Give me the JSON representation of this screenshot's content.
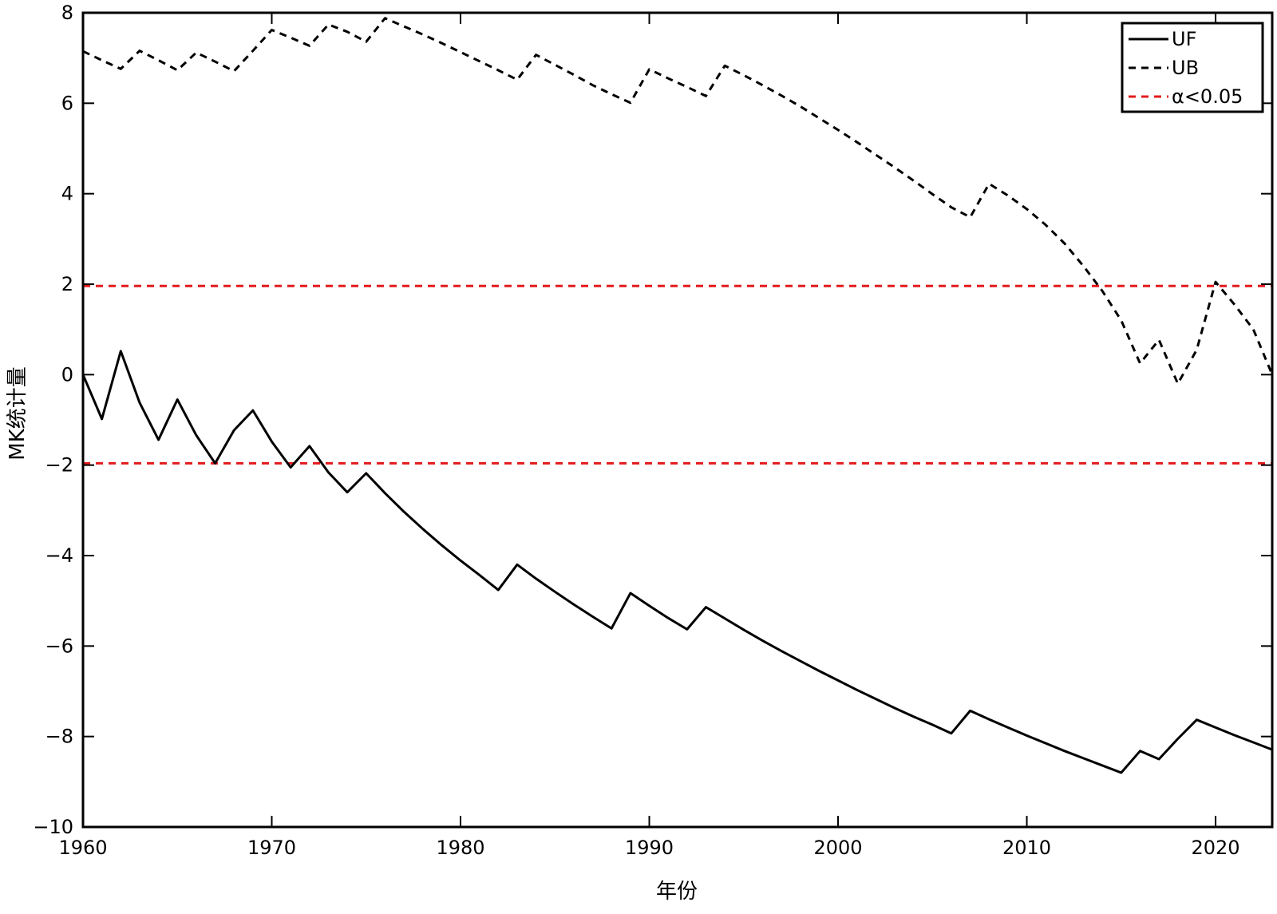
{
  "chart_data": {
    "type": "line",
    "title": "",
    "xlabel": "年份",
    "ylabel": "MK统计量",
    "xlim": [
      1960,
      2023
    ],
    "ylim": [
      -10,
      8
    ],
    "xticks": [
      1960,
      1970,
      1980,
      1990,
      2000,
      2010,
      2020
    ],
    "yticks": [
      -10,
      -8,
      -6,
      -4,
      -2,
      0,
      2,
      4,
      6,
      8
    ],
    "xtick_labels": [
      "1960",
      "1970",
      "1980",
      "1990",
      "2000",
      "2010",
      "2020"
    ],
    "ytick_labels": [
      "−10",
      "−8",
      "−6",
      "−4",
      "−2",
      "0",
      "2",
      "4",
      "6",
      "8"
    ],
    "grid": false,
    "legend_position": "top-right",
    "x": [
      1960,
      1961,
      1962,
      1963,
      1964,
      1965,
      1966,
      1967,
      1968,
      1969,
      1970,
      1971,
      1972,
      1973,
      1974,
      1975,
      1976,
      1977,
      1978,
      1979,
      1980,
      1981,
      1982,
      1983,
      1984,
      1985,
      1986,
      1987,
      1988,
      1989,
      1990,
      1991,
      1992,
      1993,
      1994,
      1995,
      1996,
      1997,
      1998,
      1999,
      2000,
      2001,
      2002,
      2003,
      2004,
      2005,
      2006,
      2007,
      2008,
      2009,
      2010,
      2011,
      2012,
      2013,
      2014,
      2015,
      2016,
      2017,
      2018,
      2019,
      2020,
      2021,
      2022,
      2023
    ],
    "series": [
      {
        "name": "UF",
        "style": "solid",
        "color": "#000000",
        "values": [
          0,
          -0.98,
          0.52,
          -0.62,
          -1.44,
          -0.55,
          -1.34,
          -1.96,
          -1.23,
          -0.79,
          -1.48,
          -2.05,
          -1.58,
          -2.16,
          -2.6,
          -2.18,
          -2.62,
          -3.03,
          -3.41,
          -3.77,
          -4.11,
          -4.43,
          -4.76,
          -4.2,
          -4.51,
          -4.8,
          -5.08,
          -5.35,
          -5.61,
          -4.83,
          -5.11,
          -5.38,
          -5.63,
          -5.14,
          -5.39,
          -5.64,
          -5.88,
          -6.11,
          -6.33,
          -6.55,
          -6.76,
          -6.97,
          -7.17,
          -7.37,
          -7.56,
          -7.74,
          -7.93,
          -7.43,
          -7.62,
          -7.8,
          -7.98,
          -8.15,
          -8.32,
          -8.48,
          -8.64,
          -8.8,
          -8.32,
          -8.5,
          -8.05,
          -7.63,
          -7.8,
          -7.97,
          -8.13,
          -8.29
        ]
      },
      {
        "name": "UB",
        "style": "dashed",
        "color": "#000000",
        "values": [
          7.15,
          6.95,
          6.76,
          7.16,
          6.95,
          6.73,
          7.12,
          6.92,
          6.71,
          7.16,
          7.62,
          7.45,
          7.27,
          7.74,
          7.58,
          7.36,
          7.88,
          7.7,
          7.52,
          7.33,
          7.13,
          6.93,
          6.73,
          6.52,
          7.07,
          6.85,
          6.63,
          6.4,
          6.2,
          6.01,
          6.75,
          6.55,
          6.36,
          6.16,
          6.83,
          6.62,
          6.4,
          6.17,
          5.93,
          5.67,
          5.41,
          5.14,
          4.86,
          4.58,
          4.29,
          3.99,
          3.7,
          3.48,
          4.22,
          3.96,
          3.66,
          3.31,
          2.9,
          2.4,
          1.85,
          1.2,
          0.25,
          0.77,
          -0.2,
          0.55,
          2.05,
          1.55,
          1.0,
          0.0
        ]
      },
      {
        "name": "α<0.05",
        "style": "dashed",
        "color": "#e31a1c",
        "hlines": [
          1.96,
          -1.96
        ]
      }
    ],
    "legend": [
      "UF",
      "UB",
      "α<0.05"
    ]
  }
}
